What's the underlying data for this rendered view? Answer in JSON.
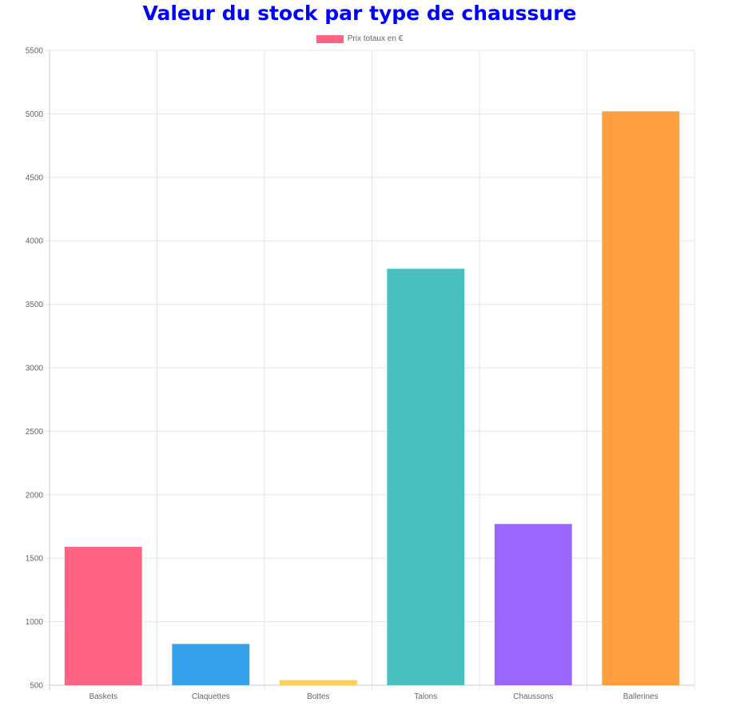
{
  "chart_data": {
    "type": "bar",
    "title": "Valeur du stock par type de chaussure",
    "xlabel": "",
    "ylabel": "",
    "categories": [
      "Baskets",
      "Claquettes",
      "Bottes",
      "Talons",
      "Chaussons",
      "Ballerines"
    ],
    "series": [
      {
        "name": "Prix totaux en €",
        "values": [
          1590,
          825,
          540,
          3780,
          1770,
          5020
        ],
        "colors": [
          "#ff6384",
          "#36a2eb",
          "#ffce56",
          "#4bc0c0",
          "#9966ff",
          "#ff9f40"
        ]
      }
    ],
    "ylim": [
      500,
      5500
    ],
    "yticks": [
      500,
      1000,
      1500,
      2000,
      2500,
      3000,
      3500,
      4000,
      4500,
      5000,
      5500
    ],
    "grid": true,
    "legend_position": "top-center"
  }
}
